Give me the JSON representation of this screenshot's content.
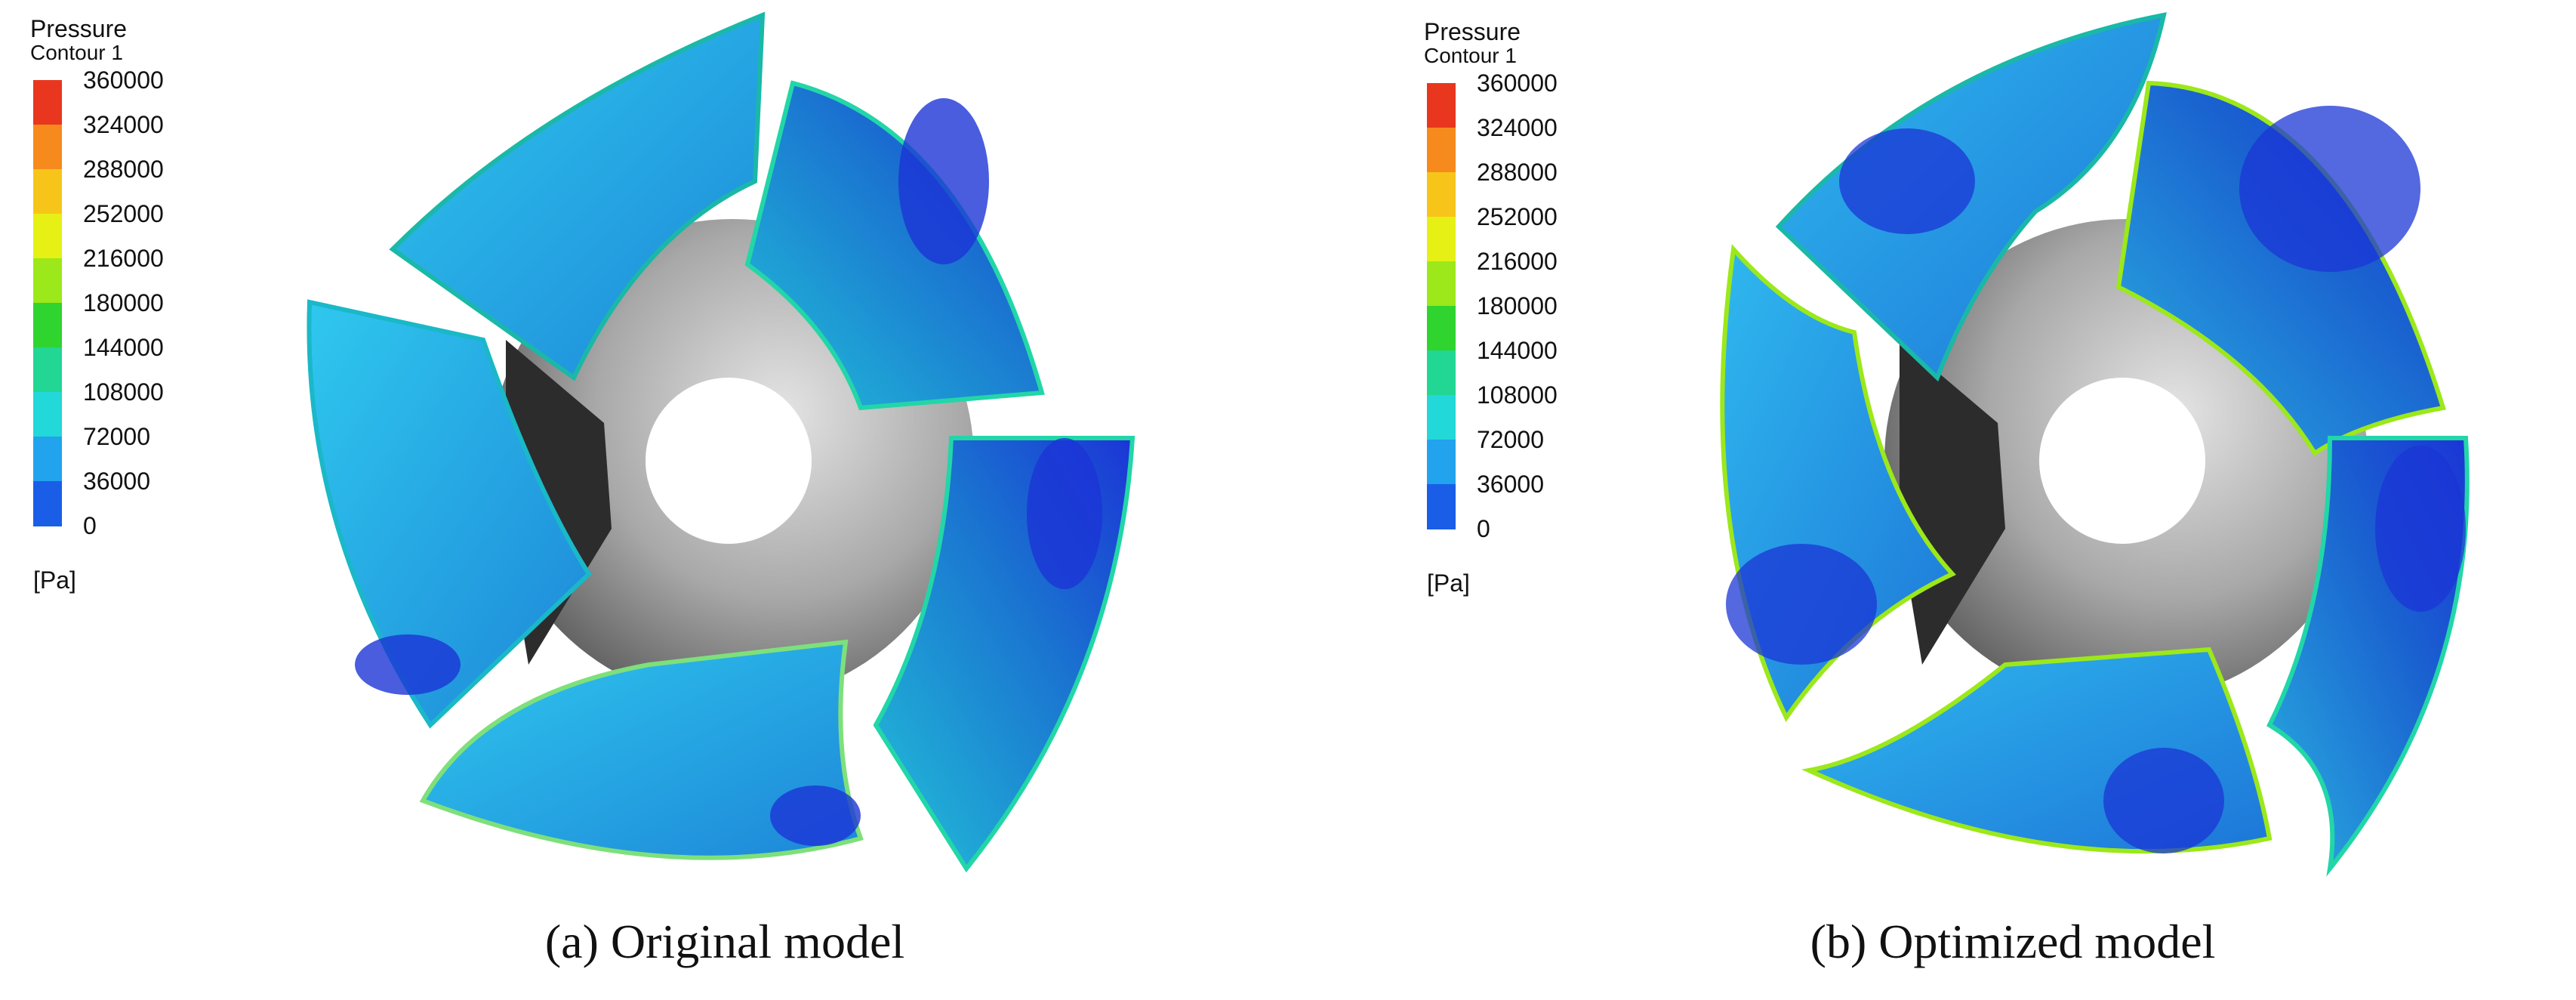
{
  "legend": {
    "title": "Pressure",
    "subtitle": "Contour 1",
    "unit": "[Pa]",
    "ticks": [
      "360000",
      "324000",
      "288000",
      "252000",
      "216000",
      "180000",
      "144000",
      "108000",
      "72000",
      "36000",
      "0"
    ],
    "colors": [
      "#e8371e",
      "#f68a1d",
      "#f7c51a",
      "#e6f014",
      "#9ce81a",
      "#2fd42f",
      "#22d694",
      "#22d8d8",
      "#22a3ee",
      "#1a5ee8",
      "#1b26d6"
    ]
  },
  "panels": [
    {
      "caption": "(a) Original model"
    },
    {
      "caption": "(b) Optimized model"
    }
  ]
}
